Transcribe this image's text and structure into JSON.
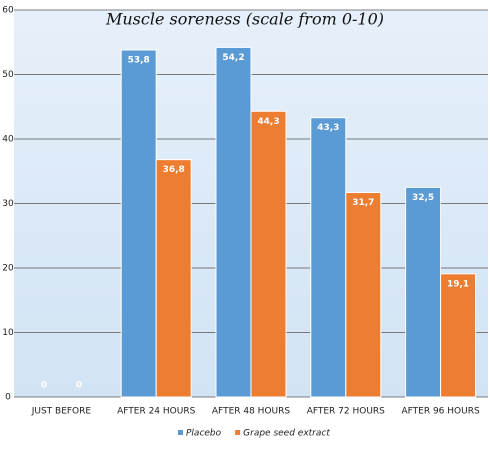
{
  "chart_data": {
    "type": "bar",
    "title": "Muscle soreness (scale from 0-10)",
    "categories": [
      "JUST BEFORE",
      "AFTER 24 HOURS",
      "AFTER 48 HOURS",
      "AFTER 72 HOURS",
      "AFTER 96 HOURS"
    ],
    "series": [
      {
        "name": "Placebo",
        "color": "#5b9bd5",
        "values": [
          0,
          53.8,
          54.2,
          43.3,
          32.5
        ],
        "value_labels": [
          "0",
          "53,8",
          "54,2",
          "43,3",
          "32,5"
        ]
      },
      {
        "name": "Grape seed extract",
        "color": "#ed7d31",
        "values": [
          0,
          36.8,
          44.3,
          31.7,
          19.1
        ],
        "value_labels": [
          "0",
          "36,8",
          "44,3",
          "31,7",
          "19,1"
        ]
      }
    ],
    "ylim": [
      0,
      60
    ],
    "yticks": [
      0,
      10,
      20,
      30,
      40,
      50,
      60
    ],
    "grid": true
  }
}
